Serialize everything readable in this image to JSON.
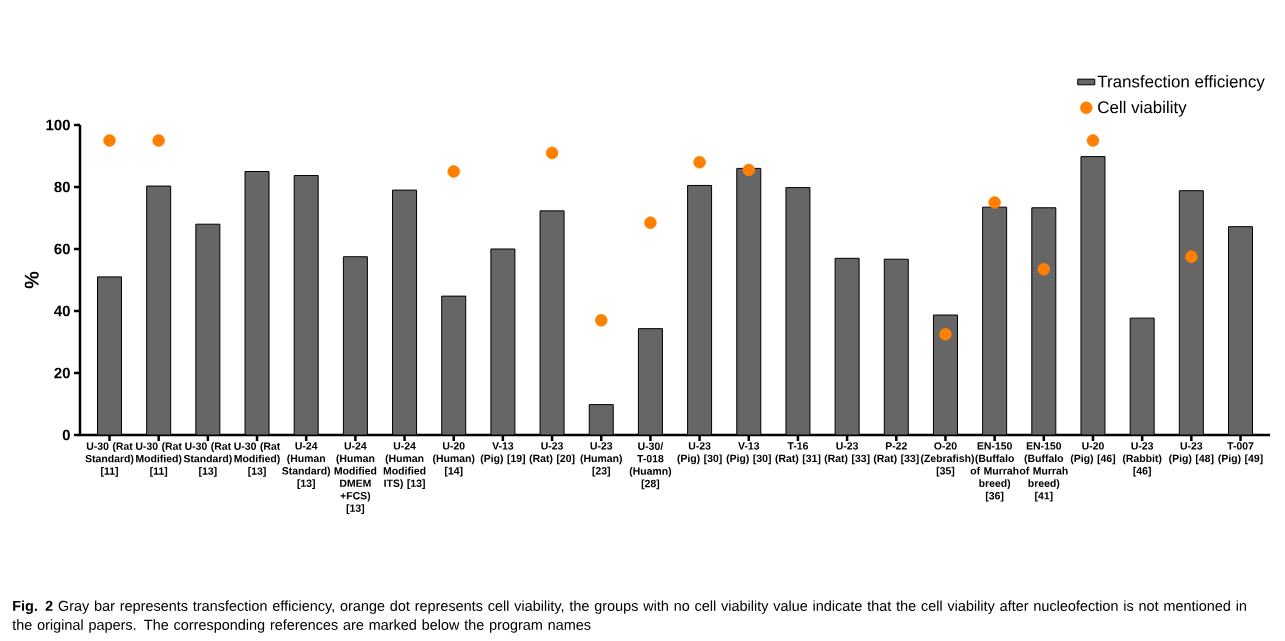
{
  "chart_data": {
    "type": "bar",
    "ylabel": "%",
    "categories": [
      "U-30 (Rat Standard) [11]",
      "U-30 (Rat Modified) [11]",
      "U-30 (Rat Standard) [13]",
      "U-30 (Rat Modified) [13]",
      "U-24 (Human Standard) [13]",
      "U-24 (Human Modified DMEM +FCS) [13]",
      "U-24 (Human Modified ITS) [13]",
      "U-20 (Human) [14]",
      "V-13 (Pig) [19]",
      "U-23 (Rat) [20]",
      "U-23 (Human) [23]",
      "U-30/ T-018 (Huamn) [28]",
      "U-23 (Pig) [30]",
      "V-13 (Pig) [30]",
      "T-16 (Rat) [31]",
      "U-23 (Rat) [33]",
      "P-22 (Rat) [33]",
      "O-20 (Zebrafish) [35]",
      "EN-150 (Buffalo of Murrah breed) [36]",
      "EN-150 (Buffalo of Murrah breed) [41]",
      "U-20 (Pig) [46]",
      "U-23 (Rabbit) [46]",
      "U-23 (Pig) [48]",
      "T-007 (Pig) [49]"
    ],
    "series": [
      {
        "name": "Transfection efficiency",
        "color": "#666666",
        "values": [
          51,
          80.3,
          68,
          85,
          83.7,
          57.5,
          79,
          44.8,
          60,
          72.3,
          9.8,
          34.3,
          80.5,
          86,
          79.8,
          57,
          56.7,
          38.7,
          73.5,
          73.3,
          89.8,
          37.7,
          78.8,
          67.2
        ]
      },
      {
        "name": "Cell viability",
        "type": "scatter",
        "color": "#ff8000",
        "marker": "circle",
        "values": [
          95,
          95,
          null,
          null,
          null,
          null,
          null,
          85,
          null,
          91,
          37,
          68.5,
          88,
          85.5,
          null,
          null,
          null,
          32.5,
          75,
          53.5,
          95,
          null,
          57.5,
          null
        ]
      }
    ],
    "ylim": [
      0,
      100
    ],
    "yticks": [
      0,
      20,
      40,
      60,
      80,
      100
    ],
    "grid": false,
    "legend": "top right",
    "annotations": [
      "**Fig. 2** Gray bar represents transfection efficiency, orange dot represents cell viability, the groups with no cell viability value indicate that the cell viability after nucleofection is not mentioned in the original papers. The corresponding references are marked below the program names"
    ]
  }
}
